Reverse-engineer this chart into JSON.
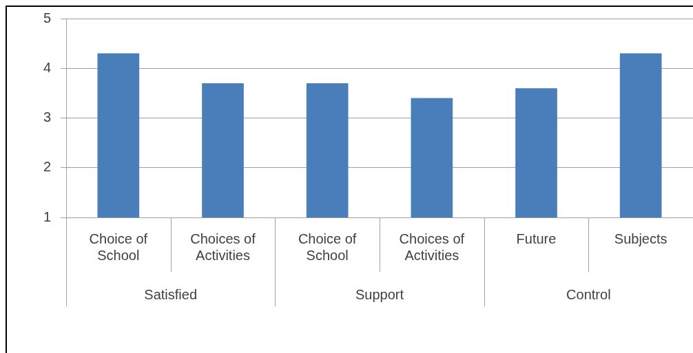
{
  "chart_data": {
    "type": "bar",
    "categories": [
      "Choice of School",
      "Choices of Activities",
      "Choice of School",
      "Choices of Activities",
      "Future",
      "Subjects"
    ],
    "values": [
      4.3,
      3.7,
      3.7,
      3.4,
      3.6,
      4.3
    ],
    "color": "#4a7ebb",
    "ylim": [
      1,
      5
    ],
    "yticks": [
      1,
      2,
      3,
      4,
      5
    ],
    "grid": "y",
    "annotations": [
      "Satisfied",
      "Support",
      "Control"
    ]
  }
}
